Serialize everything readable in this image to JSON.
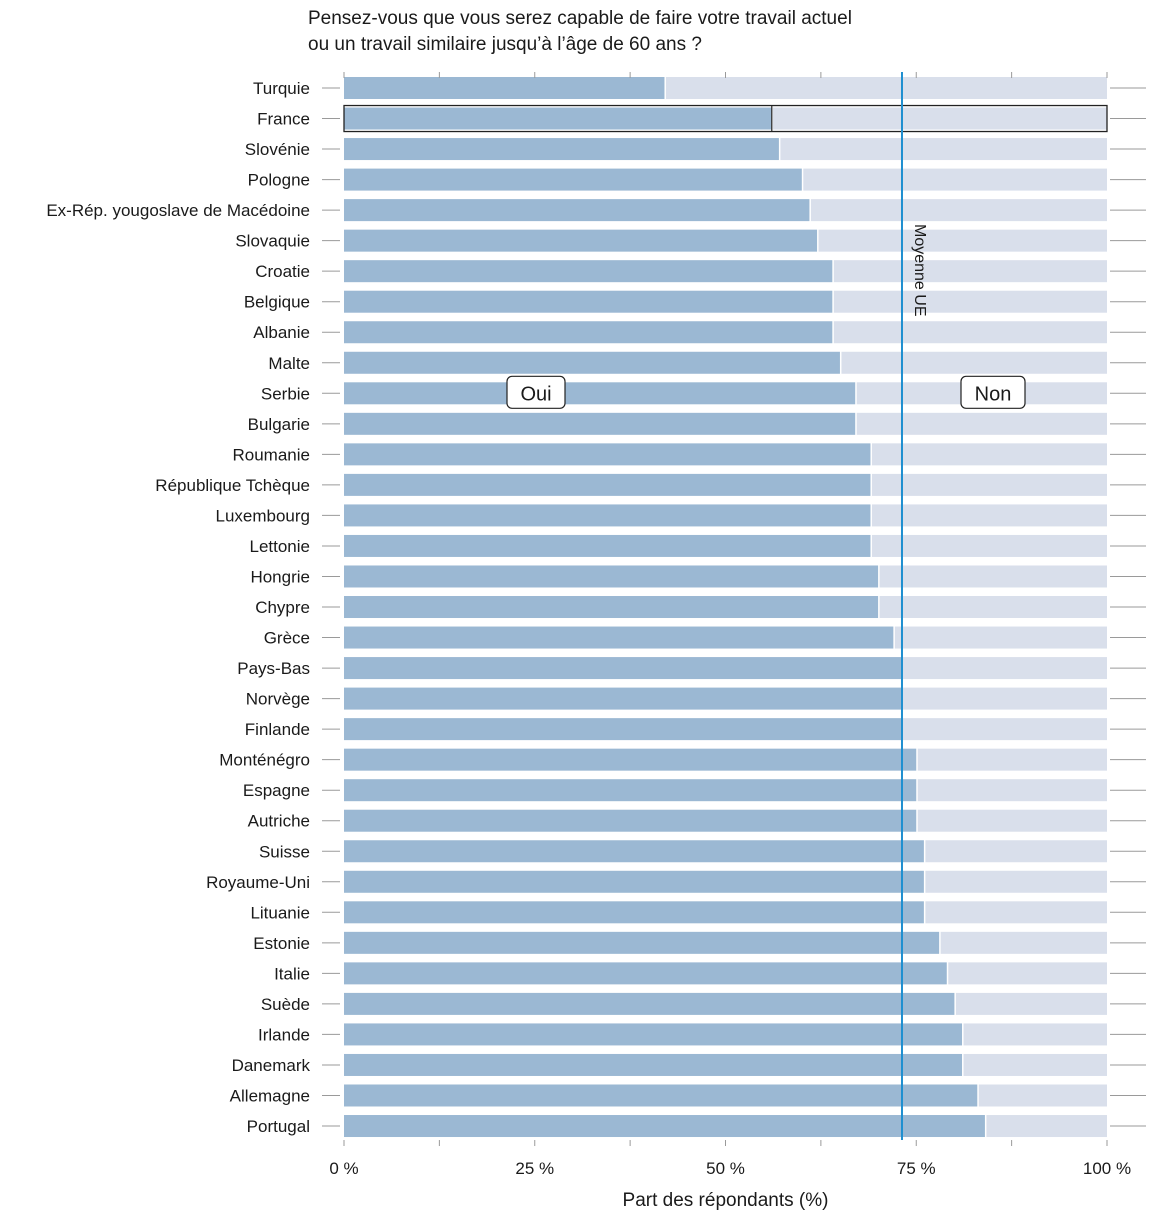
{
  "title_lines": [
    "Pensez-vous que vous serez capable de faire votre travail actuel",
    "ou un travail similaire jusqu’à l’âge de 60 ans ?"
  ],
  "chart_data": {
    "type": "bar",
    "orientation": "horizontal",
    "stacked": true,
    "categories": [
      "Turquie",
      "France",
      "Slovénie",
      "Pologne",
      "Ex-Rép. yougoslave de Macédoine",
      "Slovaquie",
      "Croatie",
      "Belgique",
      "Albanie",
      "Malte",
      "Serbie",
      "Bulgarie",
      "Roumanie",
      "République Tchèque",
      "Luxembourg",
      "Lettonie",
      "Hongrie",
      "Chypre",
      "Grèce",
      "Pays-Bas",
      "Norvège",
      "Finlande",
      "Monténégro",
      "Espagne",
      "Autriche",
      "Suisse",
      "Royaume-Uni",
      "Lituanie",
      "Estonie",
      "Italie",
      "Suède",
      "Irlande",
      "Danemark",
      "Allemagne",
      "Portugal"
    ],
    "series": [
      {
        "name": "Oui",
        "color": "#9bb8d3",
        "values": [
          42,
          56,
          57,
          60,
          61,
          62,
          64,
          64,
          64,
          65,
          67,
          67,
          69,
          69,
          69,
          69,
          70,
          70,
          72,
          73,
          73,
          73,
          75,
          75,
          75,
          76,
          76,
          76,
          78,
          79,
          80,
          81,
          81,
          83,
          84
        ]
      },
      {
        "name": "Non",
        "color": "#d9dfeb",
        "values": [
          58,
          44,
          43,
          40,
          39,
          38,
          36,
          36,
          36,
          35,
          33,
          33,
          31,
          31,
          31,
          31,
          30,
          30,
          28,
          27,
          27,
          27,
          25,
          25,
          25,
          24,
          24,
          24,
          22,
          21,
          20,
          19,
          19,
          17,
          16
        ]
      }
    ],
    "highlight_category": "France",
    "reference_line": {
      "value": 73,
      "label": "Moyenne UE",
      "color": "#1f8fd0"
    },
    "xticks": [
      0,
      25,
      50,
      75,
      100
    ],
    "xtick_labels": [
      "0 %",
      "25 %",
      "50 %",
      "75 %",
      "100 %"
    ],
    "xlim": [
      0,
      100
    ],
    "xlabel": "Part des répondants (%)",
    "annotations": [
      "Oui",
      "Non"
    ]
  }
}
